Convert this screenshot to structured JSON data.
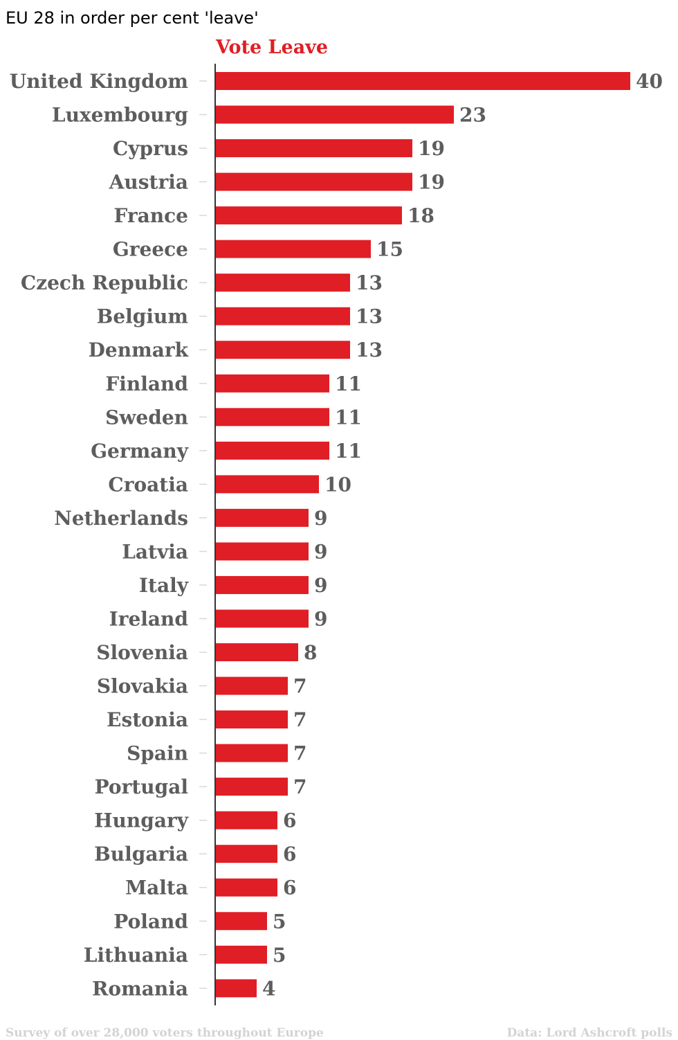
{
  "colors": {
    "bar": "#e01e25",
    "label_text": "#5d5d5d",
    "header": "#e01e25",
    "footer": "#d3d3d3",
    "title": "#000000"
  },
  "chart_data": {
    "type": "bar",
    "orientation": "horizontal",
    "title": "EU 28 in order per cent 'leave'",
    "series": [
      {
        "name": "Vote Leave",
        "values": [
          40,
          23,
          19,
          19,
          18,
          15,
          13,
          13,
          13,
          11,
          11,
          11,
          10,
          9,
          9,
          9,
          9,
          8,
          7,
          7,
          7,
          7,
          6,
          6,
          6,
          5,
          5,
          4
        ]
      }
    ],
    "categories": [
      "United Kingdom",
      "Luxembourg",
      "Cyprus",
      "Austria",
      "France",
      "Greece",
      "Czech Republic",
      "Belgium",
      "Denmark",
      "Finland",
      "Sweden",
      "Germany",
      "Croatia",
      "Netherlands",
      "Latvia",
      "Italy",
      "Ireland",
      "Slovenia",
      "Slovakia",
      "Estonia",
      "Spain",
      "Portugal",
      "Hungary",
      "Bulgaria",
      "Malta",
      "Poland",
      "Lithuania",
      "Romania"
    ],
    "xlim": [
      0,
      40
    ],
    "grid": false,
    "legend": "none",
    "data_labels": true
  },
  "footer": {
    "note": "Survey of over 28,000 voters throughout Europe",
    "source": "Data: Lord Ashcroft polls"
  }
}
